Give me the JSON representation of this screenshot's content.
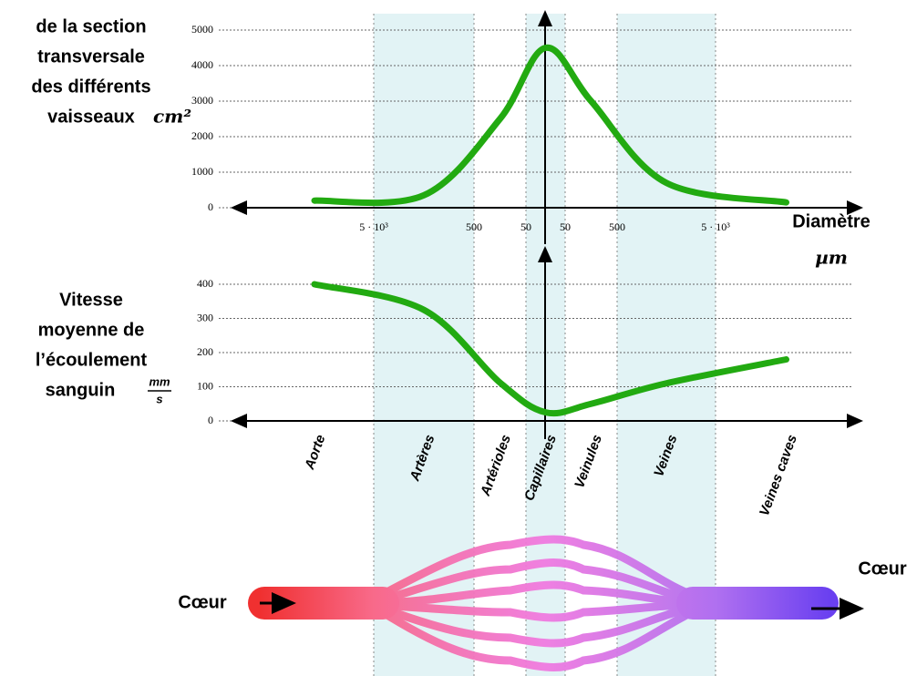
{
  "chart_data": [
    {
      "type": "line",
      "y_label_lines": [
        "de la section",
        "transversale",
        "des différents",
        "vaisseaux"
      ],
      "y_unit": "cm²",
      "x_label": "Diamètre",
      "x_unit": "µm",
      "diameter_labels": [
        "5 · 10³",
        "500",
        "50",
        "50",
        "500",
        "5 · 10³"
      ],
      "categories": [
        "Aorte",
        "Artères",
        "Artérioles",
        "Capillaires",
        "Veinules",
        "Veines",
        "Veines caves"
      ],
      "values": [
        200,
        350,
        2500,
        4500,
        3000,
        700,
        150
      ],
      "color": "#22aa11",
      "ylim": [
        0,
        5000
      ],
      "yticks": [
        0,
        1000,
        2000,
        3000,
        4000,
        5000
      ],
      "grid": true
    },
    {
      "type": "line",
      "y_label_lines": [
        "Vitesse",
        "moyenne de",
        "l’écoulement",
        "sanguin"
      ],
      "y_unit_num": "mm",
      "y_unit_den": "s",
      "categories": [
        "Aorte",
        "Artères",
        "Artérioles",
        "Capillaires",
        "Veinules",
        "Veines",
        "Veines caves"
      ],
      "values": [
        400,
        325,
        112,
        25,
        50,
        110,
        180
      ],
      "color": "#22aa11",
      "ylim": [
        0,
        400
      ],
      "yticks": [
        0,
        100,
        200,
        300,
        400
      ],
      "grid": true
    }
  ],
  "diagram": {
    "left_label": "Cœur",
    "right_label": "Cœur"
  }
}
